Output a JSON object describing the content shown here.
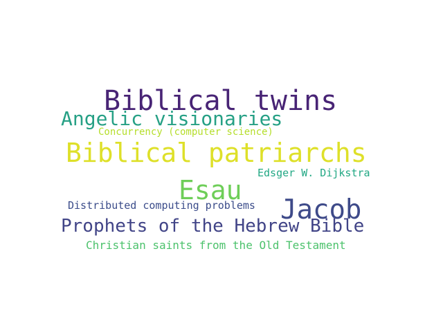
{
  "word_cloud": {
    "words": [
      {
        "id": "w-biblical-twins",
        "text": "Biblical twins",
        "color": "#482475"
      },
      {
        "id": "w-angelic",
        "text": "Angelic visionaries",
        "color": "#26A085"
      },
      {
        "id": "w-concurrency",
        "text": "Concurrency (computer science)",
        "color": "#B5DE2B"
      },
      {
        "id": "w-patriarchs",
        "text": "Biblical patriarchs",
        "color": "#DEE029"
      },
      {
        "id": "w-dijkstra",
        "text": "Edsger W. Dijkstra",
        "color": "#22A884"
      },
      {
        "id": "w-esau",
        "text": "Esau",
        "color": "#6ECE58"
      },
      {
        "id": "w-jacob",
        "text": "Jacob",
        "color": "#3E4A89"
      },
      {
        "id": "w-distributed",
        "text": "Distributed computing problems",
        "color": "#3B4C8A"
      },
      {
        "id": "w-prophets",
        "text": "Prophets of the Hebrew Bible",
        "color": "#414487"
      },
      {
        "id": "w-saints",
        "text": "Christian saints from the Old Testament",
        "color": "#4CC26C"
      }
    ]
  }
}
